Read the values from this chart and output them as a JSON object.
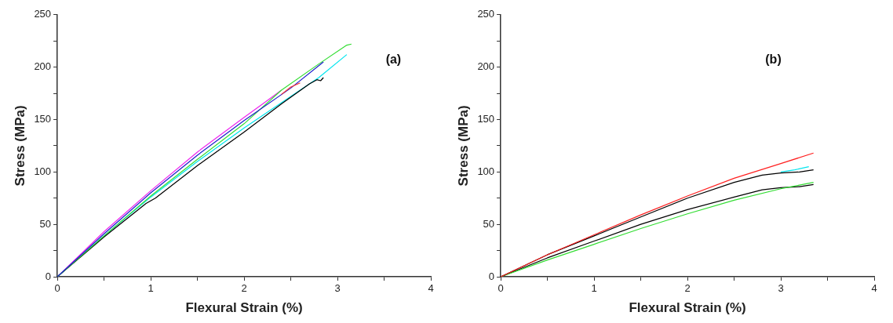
{
  "chart_data": [
    {
      "type": "line",
      "xlabel": "Flexural Strain (%)",
      "ylabel": "Stress (MPa)",
      "annotations": [
        "(a)"
      ],
      "marker": "none",
      "grid": false,
      "legend": false,
      "xlim": [
        0,
        4
      ],
      "ylim": [
        0,
        250
      ],
      "xticks": [
        0,
        {
          "value": 0.5,
          "label": null
        },
        1,
        {
          "value": 1.5,
          "label": null
        },
        2,
        {
          "value": 2.5,
          "label": null
        },
        3,
        {
          "value": 3.5,
          "label": null
        },
        4
      ],
      "yticks": [
        0,
        {
          "value": 25,
          "label": null
        },
        50,
        {
          "value": 75,
          "label": null
        },
        100,
        {
          "value": 125,
          "label": null
        },
        150,
        {
          "value": 175,
          "label": null
        },
        200,
        {
          "value": 225,
          "label": null
        },
        250
      ],
      "series": [
        {
          "color": "#ff3030",
          "x": [
            2.4,
            2.5,
            2.6
          ],
          "values": [
            174,
            181,
            185
          ]
        },
        {
          "color": "#1c1ccc",
          "x": [
            0,
            0.5,
            1,
            1.5,
            2,
            2.5,
            2.85
          ],
          "values": [
            0,
            41,
            80,
            116,
            149,
            180,
            205
          ]
        },
        {
          "color": "#33dd33",
          "x": [
            0,
            0.5,
            1,
            1.5,
            2,
            2.4,
            2.8,
            3.1,
            3.15
          ],
          "values": [
            0,
            39,
            77,
            112,
            146,
            178,
            203,
            221,
            222
          ]
        },
        {
          "color": "#000000",
          "x": [
            0,
            0.5,
            0.95,
            1.05,
            1.5,
            2,
            2.4,
            2.7,
            2.78,
            2.82,
            2.85
          ],
          "values": [
            0,
            38,
            70,
            75,
            106,
            138,
            165,
            184,
            188,
            187,
            190
          ]
        },
        {
          "color": "#00e5ee",
          "x": [
            0,
            0.5,
            1,
            1.5,
            2,
            2.5,
            2.8,
            3.1
          ],
          "values": [
            0,
            39,
            76,
            110,
            142,
            172,
            190,
            212
          ]
        },
        {
          "color": "#ee22ee",
          "x": [
            0,
            0.5,
            1,
            1.5,
            2,
            2.2,
            2.4
          ],
          "values": [
            0,
            43,
            82,
            119,
            152,
            165,
            178
          ]
        }
      ]
    },
    {
      "type": "line",
      "xlabel": "Flexural Strain (%)",
      "ylabel": "Stress (MPa)",
      "annotations": [
        "(b)"
      ],
      "marker": "none",
      "grid": false,
      "legend": false,
      "xlim": [
        0,
        4
      ],
      "ylim": [
        0,
        250
      ],
      "xticks": [
        0,
        {
          "value": 0.5,
          "label": null
        },
        1,
        {
          "value": 1.5,
          "label": null
        },
        2,
        {
          "value": 2.5,
          "label": null
        },
        3,
        {
          "value": 3.5,
          "label": null
        },
        4
      ],
      "yticks": [
        0,
        {
          "value": 25,
          "label": null
        },
        50,
        {
          "value": 75,
          "label": null
        },
        100,
        {
          "value": 125,
          "label": null
        },
        150,
        {
          "value": 175,
          "label": null
        },
        200,
        {
          "value": 225,
          "label": null
        },
        250
      ],
      "series": [
        {
          "color": "#ff2020",
          "x": [
            0,
            0.5,
            1,
            1.5,
            2,
            2.5,
            3,
            3.35
          ],
          "values": [
            0,
            21,
            40,
            59,
            77,
            94,
            108,
            118
          ]
        },
        {
          "color": "#000000",
          "x": [
            0,
            0.5,
            1,
            1.5,
            2,
            2.5,
            2.8,
            3,
            3.2,
            3.35
          ],
          "values": [
            0,
            21,
            39,
            57,
            75,
            90,
            97,
            99,
            100,
            102
          ]
        },
        {
          "color": "#00e5ee",
          "x": [
            3,
            3.15,
            3.3
          ],
          "values": [
            100,
            102,
            105
          ]
        },
        {
          "color": "#33dd33",
          "x": [
            0,
            0.5,
            1,
            1.5,
            2,
            2.5,
            3,
            3.35
          ],
          "values": [
            0,
            16,
            31,
            46,
            60,
            73,
            84,
            90
          ]
        },
        {
          "color": "#000000",
          "x": [
            0,
            0.5,
            1,
            1.5,
            2,
            2.5,
            2.8,
            3,
            3.2,
            3.35
          ],
          "values": [
            0,
            18,
            34,
            50,
            64,
            76,
            83,
            85,
            86,
            88
          ]
        }
      ]
    }
  ]
}
